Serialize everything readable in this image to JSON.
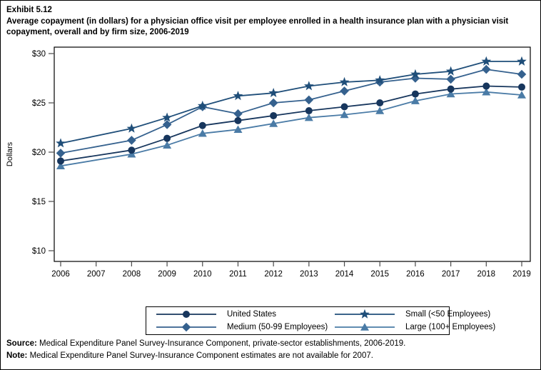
{
  "title": {
    "exhibit": "Exhibit 5.12",
    "text": "Average copayment (in dollars) for a physician office visit per employee enrolled in a health insurance plan with a physician visit copayment, overall and by firm size, 2006-2019"
  },
  "chart_data": {
    "type": "line",
    "title": "Average copayment (in dollars) for a physician office visit per employee enrolled in a health insurance plan with a physician visit copayment, overall and by firm size, 2006-2019",
    "xlabel": "",
    "ylabel": "Dollars",
    "ylim": [
      10,
      30
    ],
    "yticks": [
      10,
      15,
      20,
      25,
      30
    ],
    "ytick_labels": [
      "$10",
      "$15",
      "$20",
      "$25",
      "$30"
    ],
    "grid": false,
    "legend_position": "bottom",
    "categories": [
      "2006",
      "2007",
      "2008",
      "2009",
      "2010",
      "2011",
      "2012",
      "2013",
      "2014",
      "2015",
      "2016",
      "2017",
      "2018",
      "2019"
    ],
    "series": [
      {
        "name": "United States",
        "marker": "circle",
        "color": "#17365d",
        "values": [
          19.1,
          null,
          20.2,
          21.4,
          22.7,
          23.2,
          23.7,
          24.2,
          24.6,
          25.0,
          25.9,
          26.4,
          26.7,
          26.6
        ]
      },
      {
        "name": "Small (<50 Employees)",
        "marker": "star",
        "color": "#1f4e79",
        "values": [
          20.9,
          null,
          22.4,
          23.5,
          24.7,
          25.7,
          26.0,
          26.7,
          27.1,
          27.3,
          27.9,
          28.2,
          29.2,
          29.2
        ]
      },
      {
        "name": "Medium (50-99 Employees)",
        "marker": "diamond",
        "color": "#35618e",
        "values": [
          19.9,
          null,
          21.2,
          22.8,
          24.6,
          23.9,
          25.0,
          25.3,
          26.2,
          27.1,
          27.5,
          27.4,
          28.4,
          27.9
        ]
      },
      {
        "name": "Large (100+ Employees)",
        "marker": "triangle",
        "color": "#4a7ba6",
        "values": [
          18.6,
          null,
          19.8,
          20.7,
          21.9,
          22.3,
          22.9,
          23.5,
          23.8,
          24.2,
          25.2,
          25.9,
          26.1,
          25.8
        ]
      }
    ],
    "missing_years": [
      "2007"
    ]
  },
  "legend": {
    "order": [
      "United States",
      "Small (<50 Employees)",
      "Medium (50-99 Employees)",
      "Large (100+ Employees)"
    ]
  },
  "footer": {
    "source_label": "Source:",
    "source_text": " Medical Expenditure Panel Survey-Insurance Component, private-sector establishments, 2006-2019.",
    "note_label": "Note:",
    "note_text": " Medical Expenditure Panel Survey-Insurance Component estimates are not available for 2007."
  }
}
